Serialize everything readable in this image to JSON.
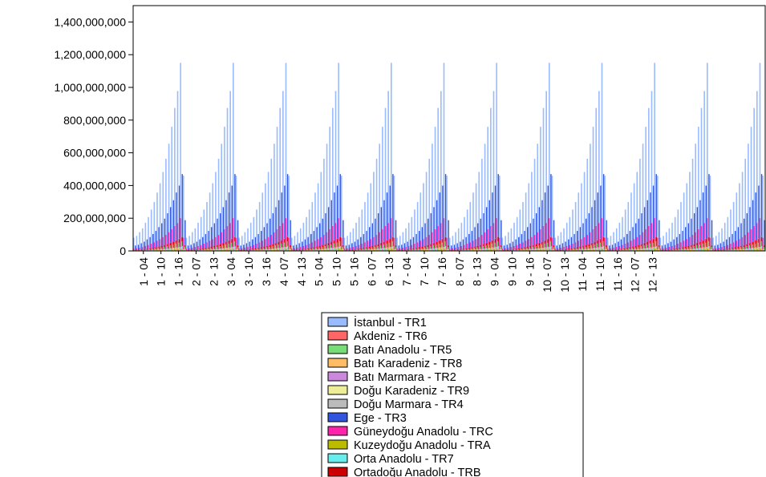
{
  "chart_data": {
    "type": "bar",
    "title": "",
    "xlabel": "",
    "ylabel": "",
    "ylim": [
      0,
      1500000000
    ],
    "yticks": [
      0,
      200000000,
      400000000,
      600000000,
      800000000,
      1000000000,
      1200000000,
      1400000000
    ],
    "ytick_labels": [
      "0",
      "200,000,000",
      "400,000,000",
      "600,000,000",
      "800,000,000",
      "1,000,000,000",
      "1,200,000,000",
      "1,400,000,000"
    ],
    "xtick_labels": [
      "1 - 04",
      "1 - 10",
      "1 - 16",
      "2 - 07",
      "2 - 13",
      "3 - 04",
      "3 - 10",
      "3 - 16",
      "4 - 07",
      "4 - 13",
      "5 - 04",
      "5 - 10",
      "5 - 16",
      "6 - 07",
      "6 - 13",
      "7 - 04",
      "7 - 10",
      "7 - 16",
      "8 - 07",
      "8 - 13",
      "9 - 04",
      "9 - 10",
      "9 - 16",
      "10 - 07",
      "10 - 13",
      "11 - 04",
      "11 - 10",
      "11 - 16",
      "12 - 07",
      "12 - 13"
    ],
    "periods": 12,
    "steps_per_period": 18,
    "grid": false,
    "legend_position": "bottom-center",
    "pattern_within_period": [
      0.07,
      0.08,
      0.1,
      0.12,
      0.15,
      0.18,
      0.22,
      0.26,
      0.31,
      0.36,
      0.42,
      0.49,
      0.57,
      0.66,
      0.76,
      0.85,
      1.0,
      0.4
    ],
    "series": [
      {
        "name": "İstanbul - TR1",
        "color": "#99bbff",
        "peak": 1150000000
      },
      {
        "name": "Akdeniz - TR6",
        "color": "#ff6666",
        "peak": 70000000
      },
      {
        "name": "Batı Anadolu - TR5",
        "color": "#77dd77",
        "peak": 60000000
      },
      {
        "name": "Batı Karadeniz - TR8",
        "color": "#ffbb66",
        "peak": 30000000
      },
      {
        "name": "Batı Marmara - TR2",
        "color": "#cc88dd",
        "peak": 25000000
      },
      {
        "name": "Doğu Karadeniz - TR9",
        "color": "#eeee99",
        "peak": 20000000
      },
      {
        "name": "Doğu Marmara - TR4",
        "color": "#bbbbbb",
        "peak": 90000000
      },
      {
        "name": "Ege - TR3",
        "color": "#3355dd",
        "peak": 470000000
      },
      {
        "name": "Güneydoğu Anadolu - TRC",
        "color": "#ff22aa",
        "peak": 200000000
      },
      {
        "name": "Kuzeydoğu Anadolu - TRA",
        "color": "#bbbb00",
        "peak": 15000000
      },
      {
        "name": "Orta Anadolu - TR7",
        "color": "#66eeee",
        "peak": 25000000
      },
      {
        "name": "Ortadoğu Anadolu - TRB",
        "color": "#cc0000",
        "peak": 85000000
      }
    ]
  }
}
